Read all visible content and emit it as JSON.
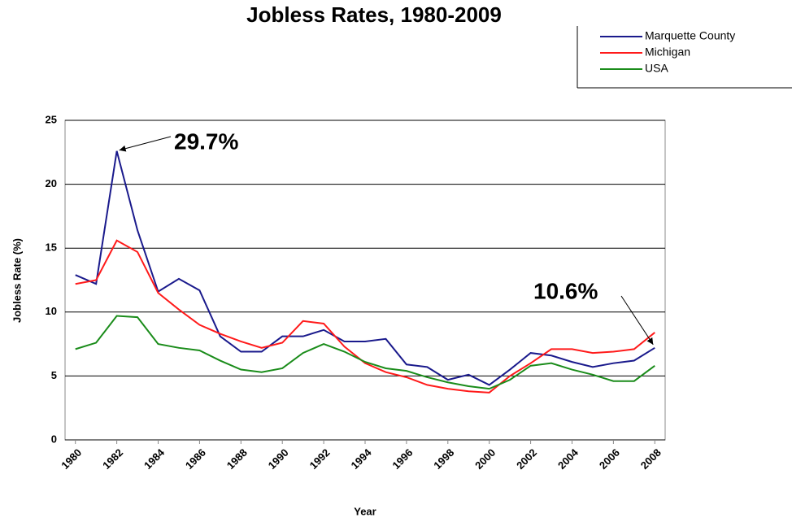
{
  "chart_data": {
    "type": "line",
    "title": "Jobless Rates, 1980-2009",
    "x": [
      1980,
      1981,
      1982,
      1983,
      1984,
      1985,
      1986,
      1987,
      1988,
      1989,
      1990,
      1991,
      1992,
      1993,
      1994,
      1995,
      1996,
      1997,
      1998,
      1999,
      2000,
      2001,
      2002,
      2003,
      2004,
      2005,
      2006,
      2007,
      2008
    ],
    "series": [
      {
        "name": "Marquette County",
        "color": "#1a1a8c",
        "values": [
          12.9,
          12.2,
          22.6,
          16.4,
          11.6,
          12.6,
          11.7,
          8.1,
          6.9,
          6.9,
          8.1,
          8.1,
          8.6,
          7.7,
          7.7,
          7.9,
          5.9,
          5.7,
          4.7,
          5.1,
          4.3,
          5.5,
          6.8,
          6.6,
          6.1,
          5.7,
          6.0,
          6.2,
          7.2
        ]
      },
      {
        "name": "Michigan",
        "color": "#ff1a1a",
        "values": [
          12.2,
          12.5,
          15.6,
          14.7,
          11.5,
          10.2,
          9.0,
          8.3,
          7.7,
          7.2,
          7.6,
          9.3,
          9.1,
          7.3,
          6.0,
          5.3,
          4.9,
          4.3,
          4.0,
          3.8,
          3.7,
          5.0,
          6.0,
          7.1,
          7.1,
          6.8,
          6.9,
          7.1,
          8.4
        ]
      },
      {
        "name": "USA",
        "color": "#1a8c1a",
        "values": [
          7.1,
          7.6,
          9.7,
          9.6,
          7.5,
          7.2,
          7.0,
          6.2,
          5.5,
          5.3,
          5.6,
          6.8,
          7.5,
          6.9,
          6.1,
          5.6,
          5.4,
          4.9,
          4.5,
          4.2,
          4.0,
          4.7,
          5.8,
          6.0,
          5.5,
          5.1,
          4.6,
          4.6,
          5.8
        ]
      }
    ],
    "xlim": [
      1979.5,
      2008.5
    ],
    "xticks": [
      1980,
      1982,
      1984,
      1986,
      1988,
      1990,
      1992,
      1994,
      1996,
      1998,
      2000,
      2002,
      2004,
      2006,
      2008
    ],
    "ylim": [
      0,
      25
    ],
    "yticks": [
      0,
      5,
      10,
      15,
      20,
      25
    ],
    "grid": true,
    "xlabel": "Year",
    "ylabel": "Jobless Rate (%)",
    "annotations": [
      "29.7%",
      "10.6%"
    ]
  }
}
